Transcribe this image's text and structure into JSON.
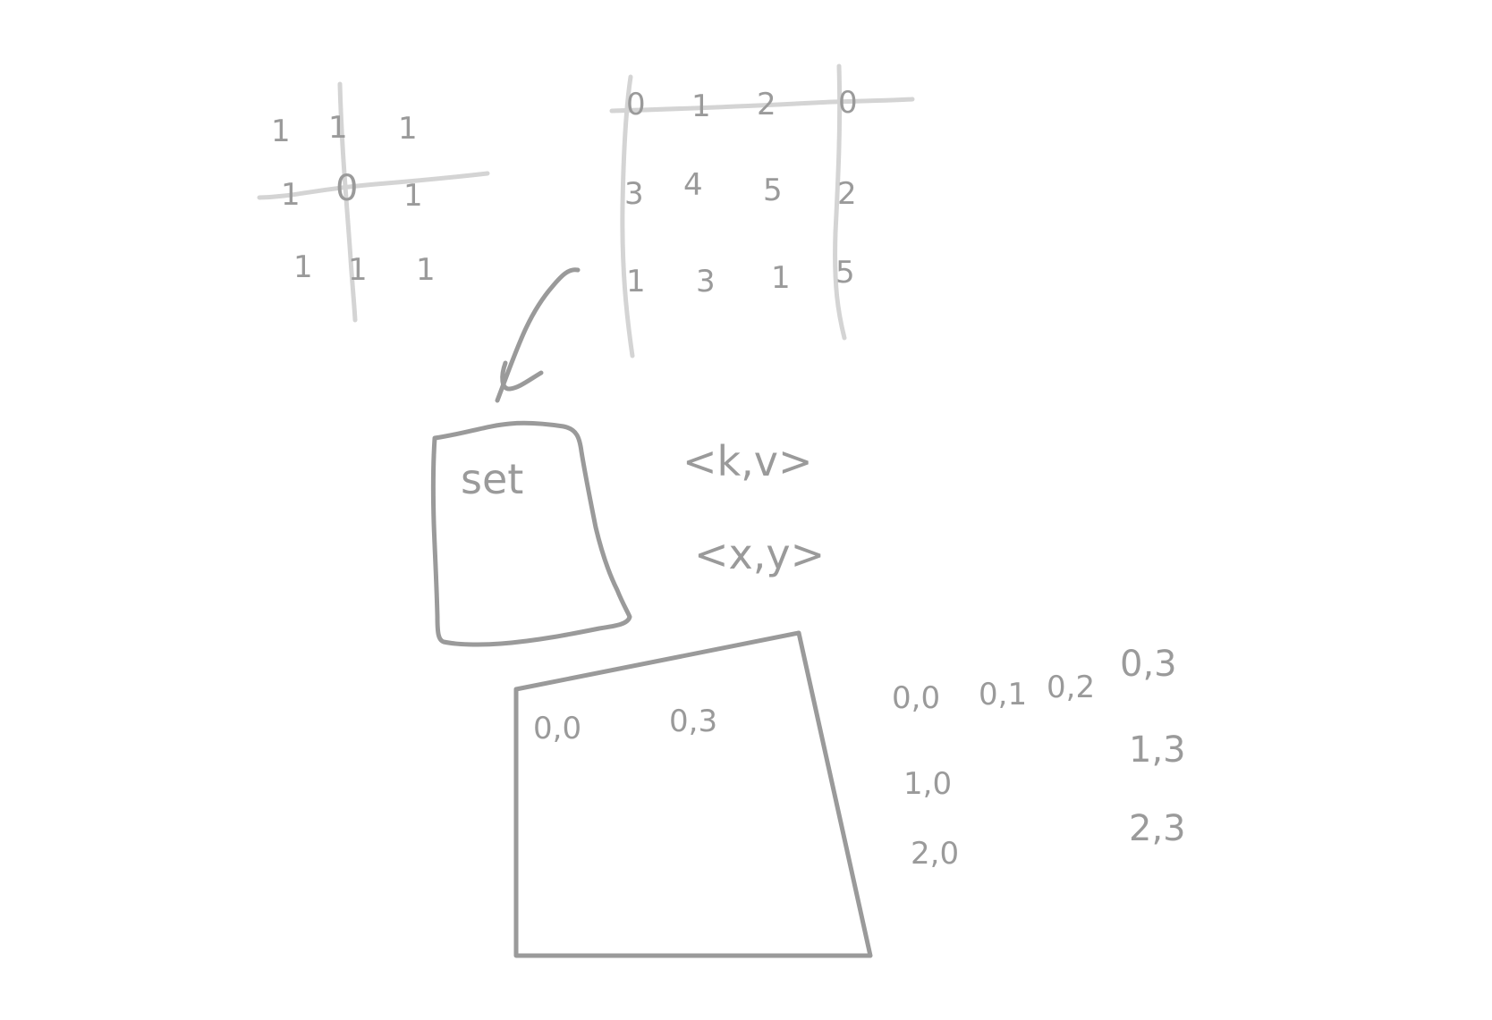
{
  "left_grid": {
    "cells": [
      "1",
      "1",
      "1",
      "1",
      "0",
      "1",
      "1",
      "1",
      "1"
    ]
  },
  "right_grid": {
    "cells": [
      "0",
      "1",
      "2",
      "0",
      "3",
      "4",
      "5",
      "2",
      "1",
      "3",
      "1",
      "5"
    ]
  },
  "set_box": {
    "label": "set"
  },
  "pairs": {
    "kv": "<k,v>",
    "xy": "<x,y>"
  },
  "matrix_box": {
    "top_left": "0,0",
    "top_right": "0,3"
  },
  "coordinate_list": {
    "top_row": [
      "0,0",
      "0,1",
      "0,2",
      "0,3"
    ],
    "left_column": [
      "1,0",
      "2,0"
    ],
    "right_column": [
      "1,3",
      "2,3"
    ]
  }
}
